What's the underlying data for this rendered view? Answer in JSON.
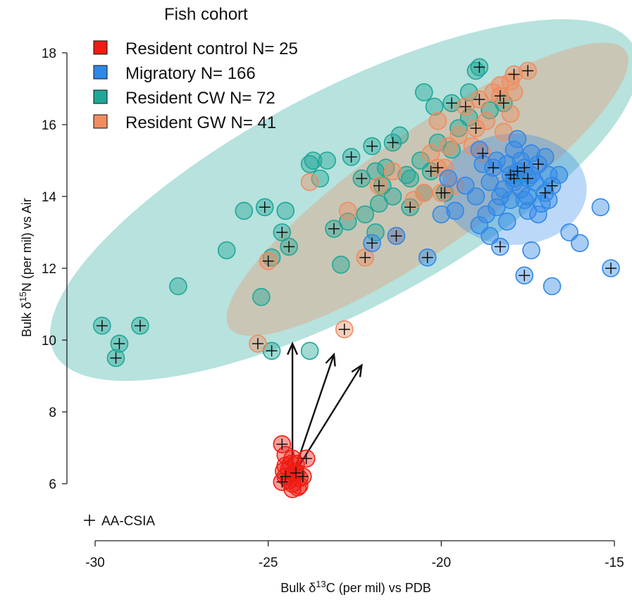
{
  "chart_data": {
    "type": "scatter",
    "title": "",
    "xlabel": "Bulk δ13C (per mil) vs PDB",
    "ylabel": "Bulk δ15N (per mil) vs Air",
    "xlabel_parts": {
      "pre": "Bulk δ",
      "sup": "13",
      "post": "C (per mil) vs PDB"
    },
    "ylabel_parts": {
      "pre": "Bulk δ",
      "sup": "15",
      "post": "N (per mil) vs Air"
    },
    "xlim": [
      -30,
      -15
    ],
    "ylim": [
      6,
      18
    ],
    "x_ticks": [
      -30,
      -25,
      -20,
      -15
    ],
    "y_ticks": [
      6,
      8,
      10,
      12,
      14,
      16,
      18
    ],
    "grid": false,
    "legend": {
      "title": "Fish cohort",
      "position": "top-left",
      "entries": [
        "Resident control N= 25",
        "Migratory N= 166",
        "Resident CW N= 72",
        "Resident GW N= 41"
      ]
    },
    "marker_legend": {
      "symbol": "+",
      "label": "AA-CSIA",
      "position": "bottom-left"
    },
    "colors": {
      "resident_control": "#ee1c12",
      "migratory": "#2f87e8",
      "resident_cw": "#20a697",
      "resident_gw": "#f08c60"
    },
    "ellipses": [
      {
        "series": "resident_cw",
        "center": [
          -22.8,
          13.9
        ],
        "semi_axes_data": [
          9.4,
          3.05
        ],
        "angle_deg": 27
      },
      {
        "series": "resident_gw",
        "center": [
          -20.4,
          14.2
        ],
        "semi_axes_data": [
          6.9,
          1.65
        ],
        "angle_deg": 34
      },
      {
        "series": "migratory",
        "center": [
          -17.9,
          14.2
        ],
        "semi_axes_data": [
          2.1,
          1.55
        ],
        "angle_deg": 0
      }
    ],
    "arrows": [
      {
        "from": [
          -24.3,
          6.2
        ],
        "to": [
          -24.3,
          9.9
        ]
      },
      {
        "from": [
          -24.3,
          6.2
        ],
        "to": [
          -23.1,
          9.6
        ]
      },
      {
        "from": [
          -24.3,
          6.2
        ],
        "to": [
          -22.3,
          9.3
        ]
      }
    ],
    "series": [
      {
        "name": "Resident control N= 25",
        "key": "resident_control",
        "points": [
          {
            "x": -24.6,
            "y": 7.1,
            "aa": true
          },
          {
            "x": -24.3,
            "y": 6.7
          },
          {
            "x": -24.5,
            "y": 6.5
          },
          {
            "x": -24.2,
            "y": 6.3,
            "aa": true
          },
          {
            "x": -24.5,
            "y": 6.2,
            "aa": true
          },
          {
            "x": -24.3,
            "y": 6.0
          },
          {
            "x": -24.1,
            "y": 5.95
          },
          {
            "x": -24.3,
            "y": 5.85
          },
          {
            "x": -24.6,
            "y": 6.05,
            "aa": true
          },
          {
            "x": -23.9,
            "y": 6.7,
            "aa": true
          },
          {
            "x": -24.1,
            "y": 6.15
          },
          {
            "x": -24.4,
            "y": 6.4
          },
          {
            "x": -24.0,
            "y": 6.2,
            "aa": true
          },
          {
            "x": -24.5,
            "y": 6.8
          },
          {
            "x": -24.2,
            "y": 6.55
          },
          {
            "x": -24.4,
            "y": 6.1
          },
          {
            "x": -24.25,
            "y": 6.3
          },
          {
            "x": -24.55,
            "y": 6.35
          },
          {
            "x": -24.15,
            "y": 5.9
          },
          {
            "x": -24.35,
            "y": 6.55
          }
        ]
      },
      {
        "name": "Migratory N= 166",
        "key": "migratory",
        "points": [
          {
            "x": -17.8,
            "y": 14.7,
            "aa": true
          },
          {
            "x": -17.9,
            "y": 14.5,
            "aa": true
          },
          {
            "x": -17.6,
            "y": 14.8,
            "aa": true
          },
          {
            "x": -17.2,
            "y": 14.9,
            "aa": true
          },
          {
            "x": -17.5,
            "y": 14.5,
            "aa": true
          },
          {
            "x": -18.0,
            "y": 14.6,
            "aa": true
          },
          {
            "x": -17.0,
            "y": 14.1,
            "aa": true
          },
          {
            "x": -16.8,
            "y": 14.3,
            "aa": true
          },
          {
            "x": -18.5,
            "y": 14.8,
            "aa": true
          },
          {
            "x": -18.3,
            "y": 12.6,
            "aa": true
          },
          {
            "x": -17.6,
            "y": 11.8,
            "aa": true
          },
          {
            "x": -15.1,
            "y": 12.0,
            "aa": true
          },
          {
            "x": -20.4,
            "y": 12.3,
            "aa": true
          },
          {
            "x": -22.0,
            "y": 12.7,
            "aa": true
          },
          {
            "x": -21.3,
            "y": 12.9
          },
          {
            "x": -18.2,
            "y": 14.2
          },
          {
            "x": -17.7,
            "y": 15.0
          },
          {
            "x": -18.0,
            "y": 13.9
          },
          {
            "x": -17.4,
            "y": 15.2
          },
          {
            "x": -17.9,
            "y": 15.3
          },
          {
            "x": -18.6,
            "y": 14.4
          },
          {
            "x": -18.4,
            "y": 13.7
          },
          {
            "x": -17.3,
            "y": 14.4
          },
          {
            "x": -17.1,
            "y": 13.8
          },
          {
            "x": -16.9,
            "y": 14.6
          },
          {
            "x": -18.7,
            "y": 13.5
          },
          {
            "x": -18.1,
            "y": 13.3
          },
          {
            "x": -17.5,
            "y": 13.6
          },
          {
            "x": -19.0,
            "y": 14.0
          },
          {
            "x": -19.3,
            "y": 14.3
          },
          {
            "x": -18.8,
            "y": 14.9
          },
          {
            "x": -17.8,
            "y": 15.6
          },
          {
            "x": -18.4,
            "y": 15.0
          },
          {
            "x": -16.6,
            "y": 14.6
          },
          {
            "x": -19.6,
            "y": 13.6
          },
          {
            "x": -18.9,
            "y": 13.2
          },
          {
            "x": -18.6,
            "y": 12.9
          },
          {
            "x": -16.3,
            "y": 13.0
          },
          {
            "x": -16.0,
            "y": 12.7
          },
          {
            "x": -15.4,
            "y": 13.7
          },
          {
            "x": -17.4,
            "y": 12.5
          },
          {
            "x": -16.8,
            "y": 11.5
          },
          {
            "x": -17.2,
            "y": 13.5
          },
          {
            "x": -16.9,
            "y": 13.9
          },
          {
            "x": -17.7,
            "y": 14.2
          },
          {
            "x": -18.3,
            "y": 14.0
          },
          {
            "x": -17.0,
            "y": 15.1
          },
          {
            "x": -20.0,
            "y": 13.5
          },
          {
            "x": -19.8,
            "y": 14.5
          },
          {
            "x": -18.9,
            "y": 15.3
          },
          {
            "x": -17.5,
            "y": 14.0
          },
          {
            "x": -17.9,
            "y": 14.4
          },
          {
            "x": -17.4,
            "y": 14.6
          },
          {
            "x": -18.1,
            "y": 14.9
          },
          {
            "x": -17.6,
            "y": 13.9
          }
        ]
      },
      {
        "name": "Resident CW N= 72",
        "key": "resident_cw",
        "points": [
          {
            "x": -29.8,
            "y": 10.4,
            "aa": true
          },
          {
            "x": -29.3,
            "y": 9.9,
            "aa": true
          },
          {
            "x": -29.4,
            "y": 9.5,
            "aa": true
          },
          {
            "x": -28.7,
            "y": 10.4,
            "aa": true
          },
          {
            "x": -27.6,
            "y": 11.5
          },
          {
            "x": -26.2,
            "y": 12.5
          },
          {
            "x": -25.7,
            "y": 13.6
          },
          {
            "x": -25.1,
            "y": 13.7,
            "aa": true
          },
          {
            "x": -24.5,
            "y": 13.6
          },
          {
            "x": -24.6,
            "y": 13.0,
            "aa": true
          },
          {
            "x": -24.4,
            "y": 12.6,
            "aa": true
          },
          {
            "x": -24.9,
            "y": 12.3
          },
          {
            "x": -25.2,
            "y": 11.2
          },
          {
            "x": -24.9,
            "y": 9.7,
            "aa": true
          },
          {
            "x": -23.8,
            "y": 9.7
          },
          {
            "x": -23.8,
            "y": 14.9
          },
          {
            "x": -23.7,
            "y": 15.0
          },
          {
            "x": -23.3,
            "y": 15.0
          },
          {
            "x": -22.6,
            "y": 15.1,
            "aa": true
          },
          {
            "x": -22.0,
            "y": 15.4,
            "aa": true
          },
          {
            "x": -21.4,
            "y": 15.5,
            "aa": true
          },
          {
            "x": -21.2,
            "y": 15.7
          },
          {
            "x": -22.3,
            "y": 14.5,
            "aa": true
          },
          {
            "x": -21.9,
            "y": 14.7
          },
          {
            "x": -21.6,
            "y": 14.8
          },
          {
            "x": -21.0,
            "y": 14.6
          },
          {
            "x": -20.6,
            "y": 15.0
          },
          {
            "x": -20.3,
            "y": 14.7,
            "aa": true
          },
          {
            "x": -20.2,
            "y": 16.5
          },
          {
            "x": -20.5,
            "y": 16.9
          },
          {
            "x": -19.7,
            "y": 16.6,
            "aa": true
          },
          {
            "x": -19.2,
            "y": 16.2
          },
          {
            "x": -19.0,
            "y": 17.5
          },
          {
            "x": -18.9,
            "y": 17.6,
            "aa": true
          },
          {
            "x": -19.2,
            "y": 16.9
          },
          {
            "x": -18.6,
            "y": 16.4
          },
          {
            "x": -18.2,
            "y": 16.6,
            "aa": true
          },
          {
            "x": -23.1,
            "y": 13.1,
            "aa": true
          },
          {
            "x": -22.2,
            "y": 13.5
          },
          {
            "x": -22.7,
            "y": 13.3
          },
          {
            "x": -22.9,
            "y": 12.1
          },
          {
            "x": -21.8,
            "y": 13.8
          },
          {
            "x": -21.4,
            "y": 14.0
          },
          {
            "x": -20.9,
            "y": 13.7,
            "aa": true
          },
          {
            "x": -20.5,
            "y": 14.1
          },
          {
            "x": -20.9,
            "y": 14.5
          },
          {
            "x": -19.9,
            "y": 14.1,
            "aa": true
          },
          {
            "x": -19.7,
            "y": 15.3
          },
          {
            "x": -21.9,
            "y": 13.0
          },
          {
            "x": -23.5,
            "y": 14.5
          },
          {
            "x": -20.1,
            "y": 15.5
          },
          {
            "x": -19.5,
            "y": 15.9
          },
          {
            "x": -21.7,
            "y": 14.3
          }
        ]
      },
      {
        "name": "Resident GW N= 41",
        "key": "resident_gw",
        "points": [
          {
            "x": -25.3,
            "y": 9.9,
            "aa": true
          },
          {
            "x": -22.8,
            "y": 10.3,
            "aa": true
          },
          {
            "x": -25.0,
            "y": 12.2,
            "aa": true
          },
          {
            "x": -23.8,
            "y": 14.4
          },
          {
            "x": -22.7,
            "y": 13.6
          },
          {
            "x": -22.2,
            "y": 12.3,
            "aa": true
          },
          {
            "x": -21.3,
            "y": 12.9,
            "aa": true
          },
          {
            "x": -21.8,
            "y": 14.3,
            "aa": true
          },
          {
            "x": -21.4,
            "y": 14.7
          },
          {
            "x": -20.8,
            "y": 13.9
          },
          {
            "x": -20.5,
            "y": 14.1
          },
          {
            "x": -20.1,
            "y": 14.8,
            "aa": true
          },
          {
            "x": -20.0,
            "y": 14.1,
            "aa": true
          },
          {
            "x": -19.8,
            "y": 15.4
          },
          {
            "x": -19.5,
            "y": 15.7
          },
          {
            "x": -19.1,
            "y": 15.4
          },
          {
            "x": -18.8,
            "y": 15.2,
            "aa": true
          },
          {
            "x": -19.0,
            "y": 15.9,
            "aa": true
          },
          {
            "x": -18.7,
            "y": 16.1
          },
          {
            "x": -18.9,
            "y": 16.7,
            "aa": true
          },
          {
            "x": -18.5,
            "y": 16.9
          },
          {
            "x": -18.3,
            "y": 16.8,
            "aa": true
          },
          {
            "x": -18.0,
            "y": 17.2
          },
          {
            "x": -17.9,
            "y": 17.4,
            "aa": true
          },
          {
            "x": -17.5,
            "y": 17.5,
            "aa": true
          },
          {
            "x": -18.3,
            "y": 17.1
          },
          {
            "x": -17.9,
            "y": 16.9
          },
          {
            "x": -19.3,
            "y": 16.5,
            "aa": true
          },
          {
            "x": -20.1,
            "y": 16.1
          },
          {
            "x": -19.6,
            "y": 14.3
          },
          {
            "x": -19.9,
            "y": 14.8
          },
          {
            "x": -20.3,
            "y": 15.2
          },
          {
            "x": -18.2,
            "y": 15.8
          },
          {
            "x": -18.0,
            "y": 16.3
          }
        ]
      }
    ]
  }
}
